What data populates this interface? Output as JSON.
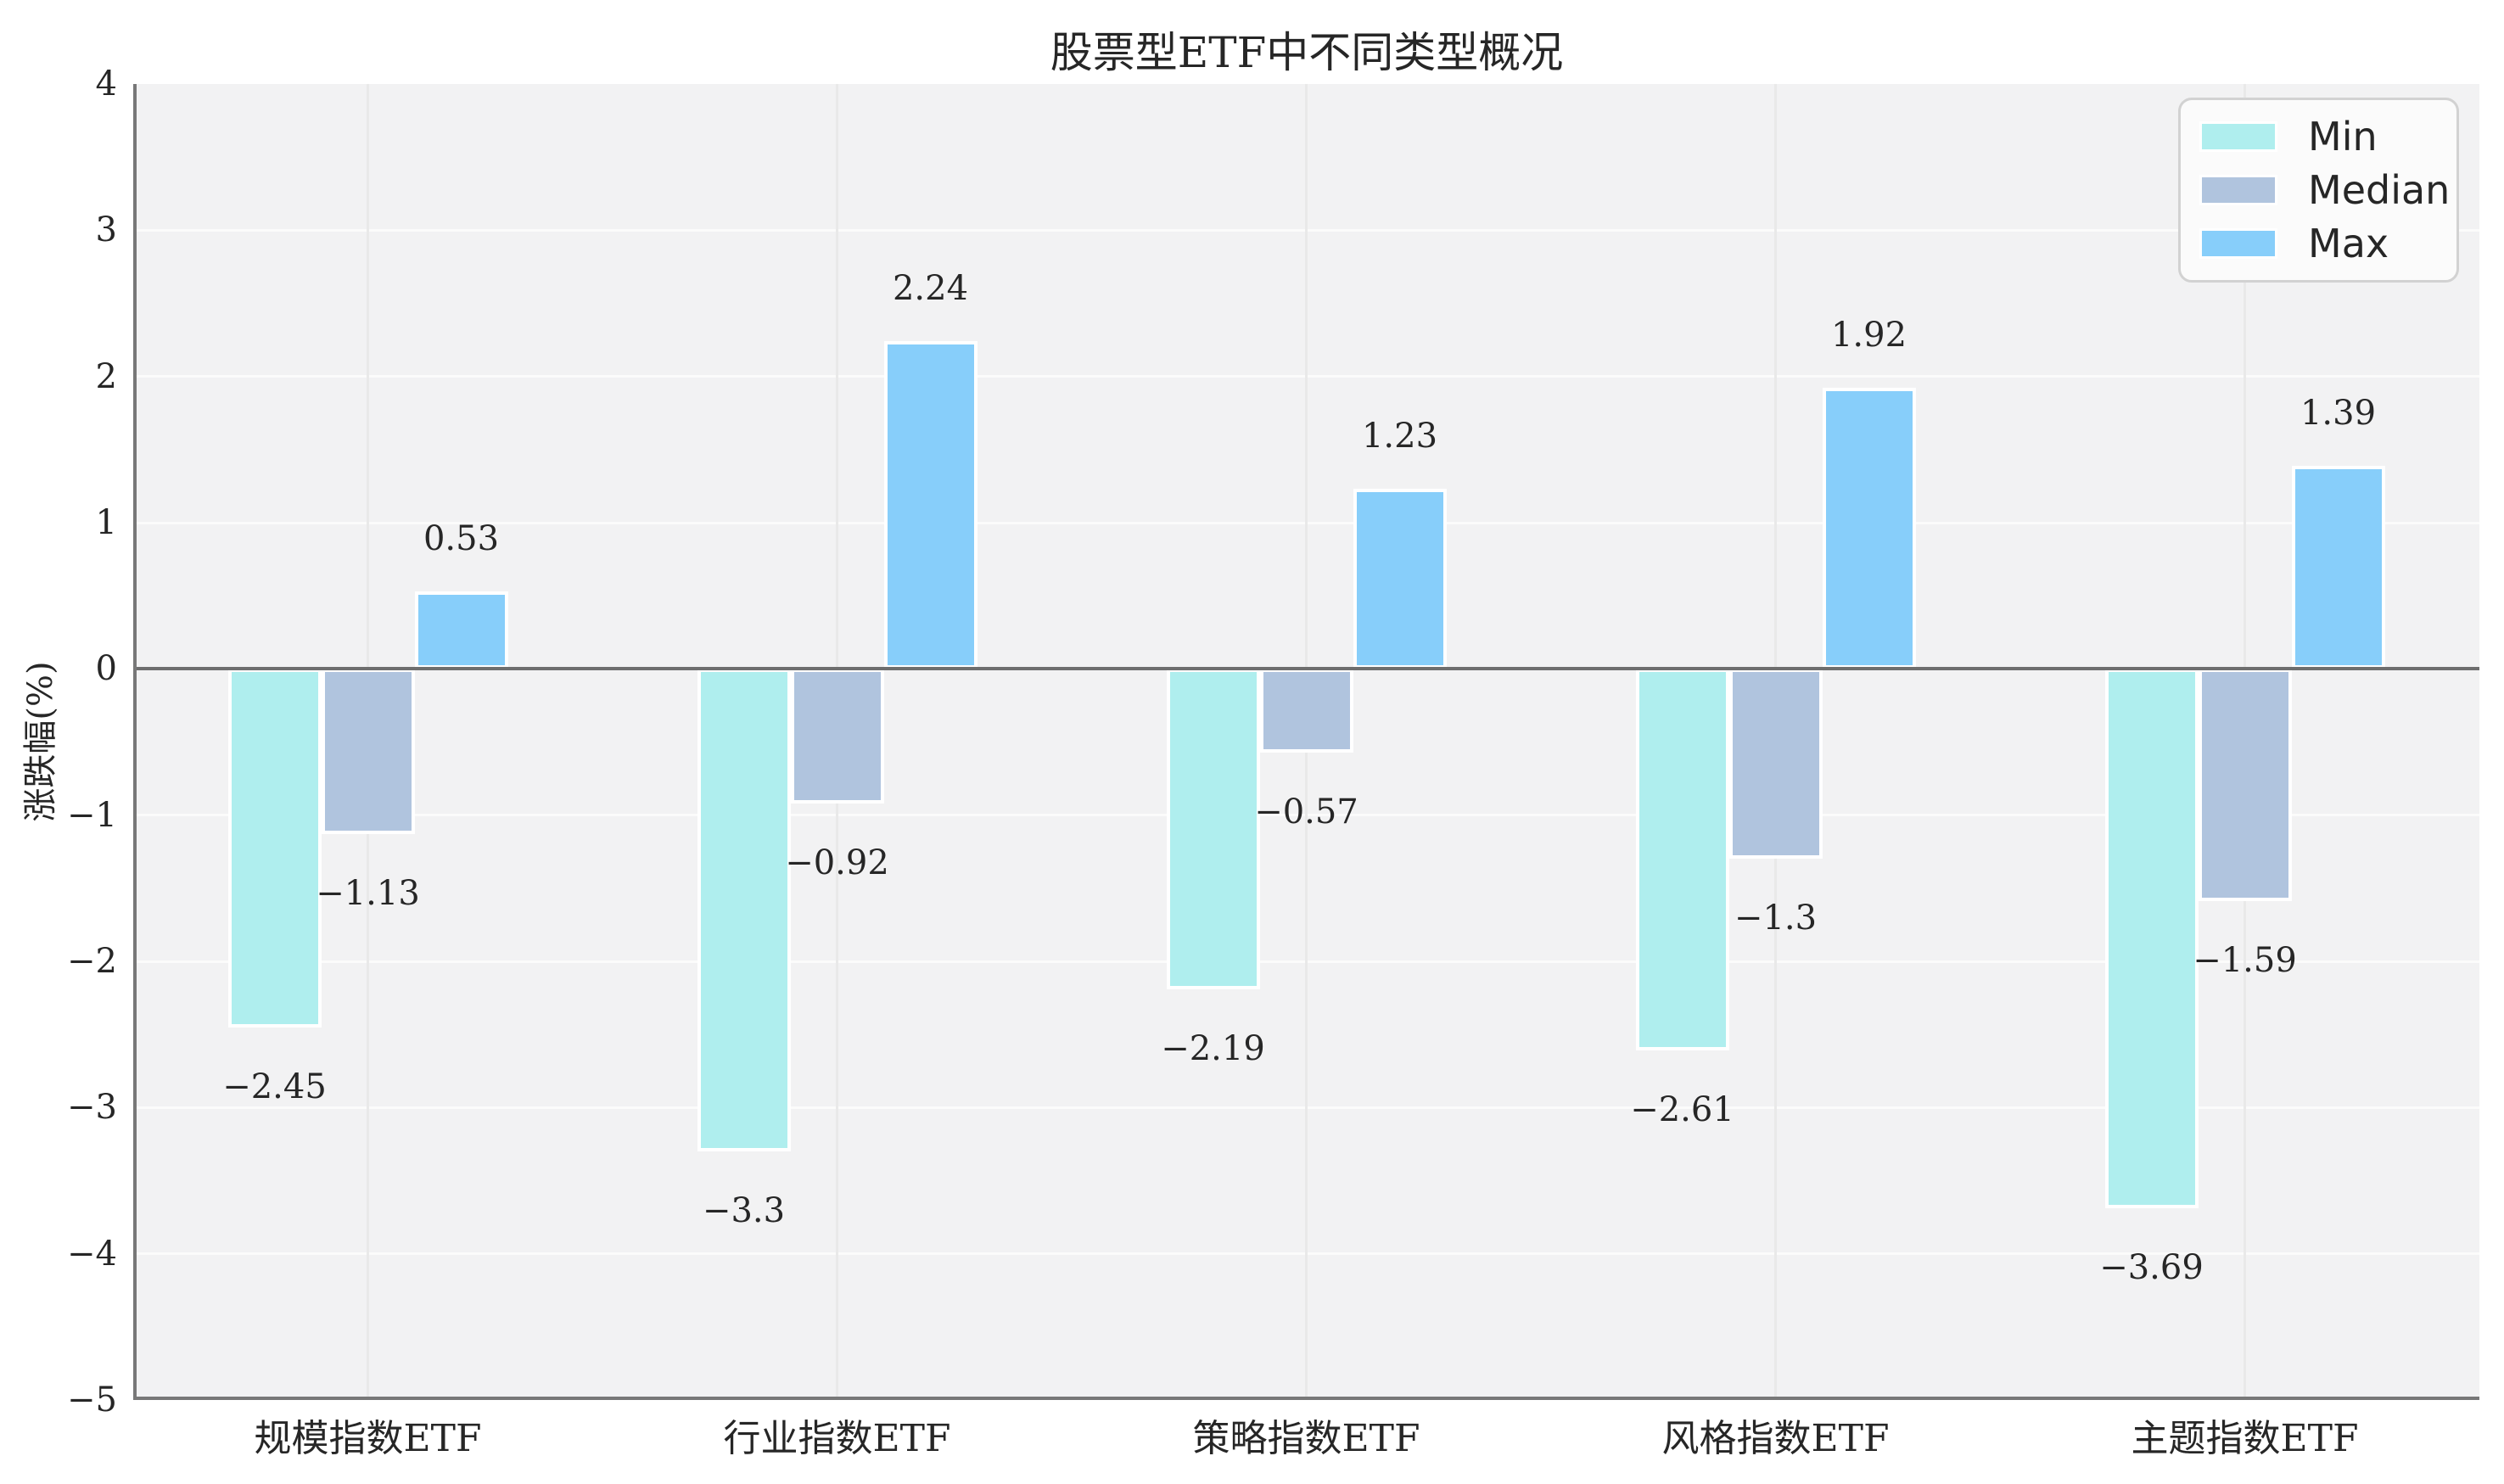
{
  "chart_data": {
    "type": "bar",
    "title": "股票型ETF中不同类型概况",
    "ylabel": "涨跌幅(%)",
    "xlabel": "",
    "categories": [
      "规模指数ETF",
      "行业指数ETF",
      "策略指数ETF",
      "风格指数ETF",
      "主题指数ETF"
    ],
    "series": [
      {
        "name": "Min",
        "color": "#AFEEEE",
        "values": [
          -2.45,
          -3.3,
          -2.19,
          -2.61,
          -3.69
        ],
        "labels": [
          "-2.45",
          "-3.3",
          "-2.19",
          "-2.61",
          "-3.69"
        ]
      },
      {
        "name": "Median",
        "color": "#B0C4DE",
        "values": [
          -1.13,
          -0.92,
          -0.57,
          -1.3,
          -1.59
        ],
        "labels": [
          "-1.13",
          "-0.92",
          "-0.57",
          "-1.3",
          "-1.59"
        ]
      },
      {
        "name": "Max",
        "color": "#87CEFA",
        "values": [
          0.53,
          2.24,
          1.23,
          1.92,
          1.39
        ],
        "labels": [
          "0.53",
          "2.24",
          "1.23",
          "1.92",
          "1.39"
        ]
      }
    ],
    "ylim": [
      -5,
      4
    ],
    "yticks": [
      "4",
      "3",
      "2",
      "1",
      "0",
      "-1",
      "-2",
      "-3",
      "-4",
      "-5"
    ],
    "grid": true,
    "legend": {
      "position": "upper right",
      "entries": [
        "Min",
        "Median",
        "Max"
      ]
    }
  },
  "style_colors": {
    "plot_background": "#f2f2f3",
    "horizontal_grid": "#fbfbfb",
    "vertical_grid": "#e9e9e9",
    "spine": "#787878",
    "zero_line": "#6e6e6e",
    "text": "#262626",
    "legend_background": "#fbfbfb",
    "legend_border": "#d2d2d2"
  }
}
